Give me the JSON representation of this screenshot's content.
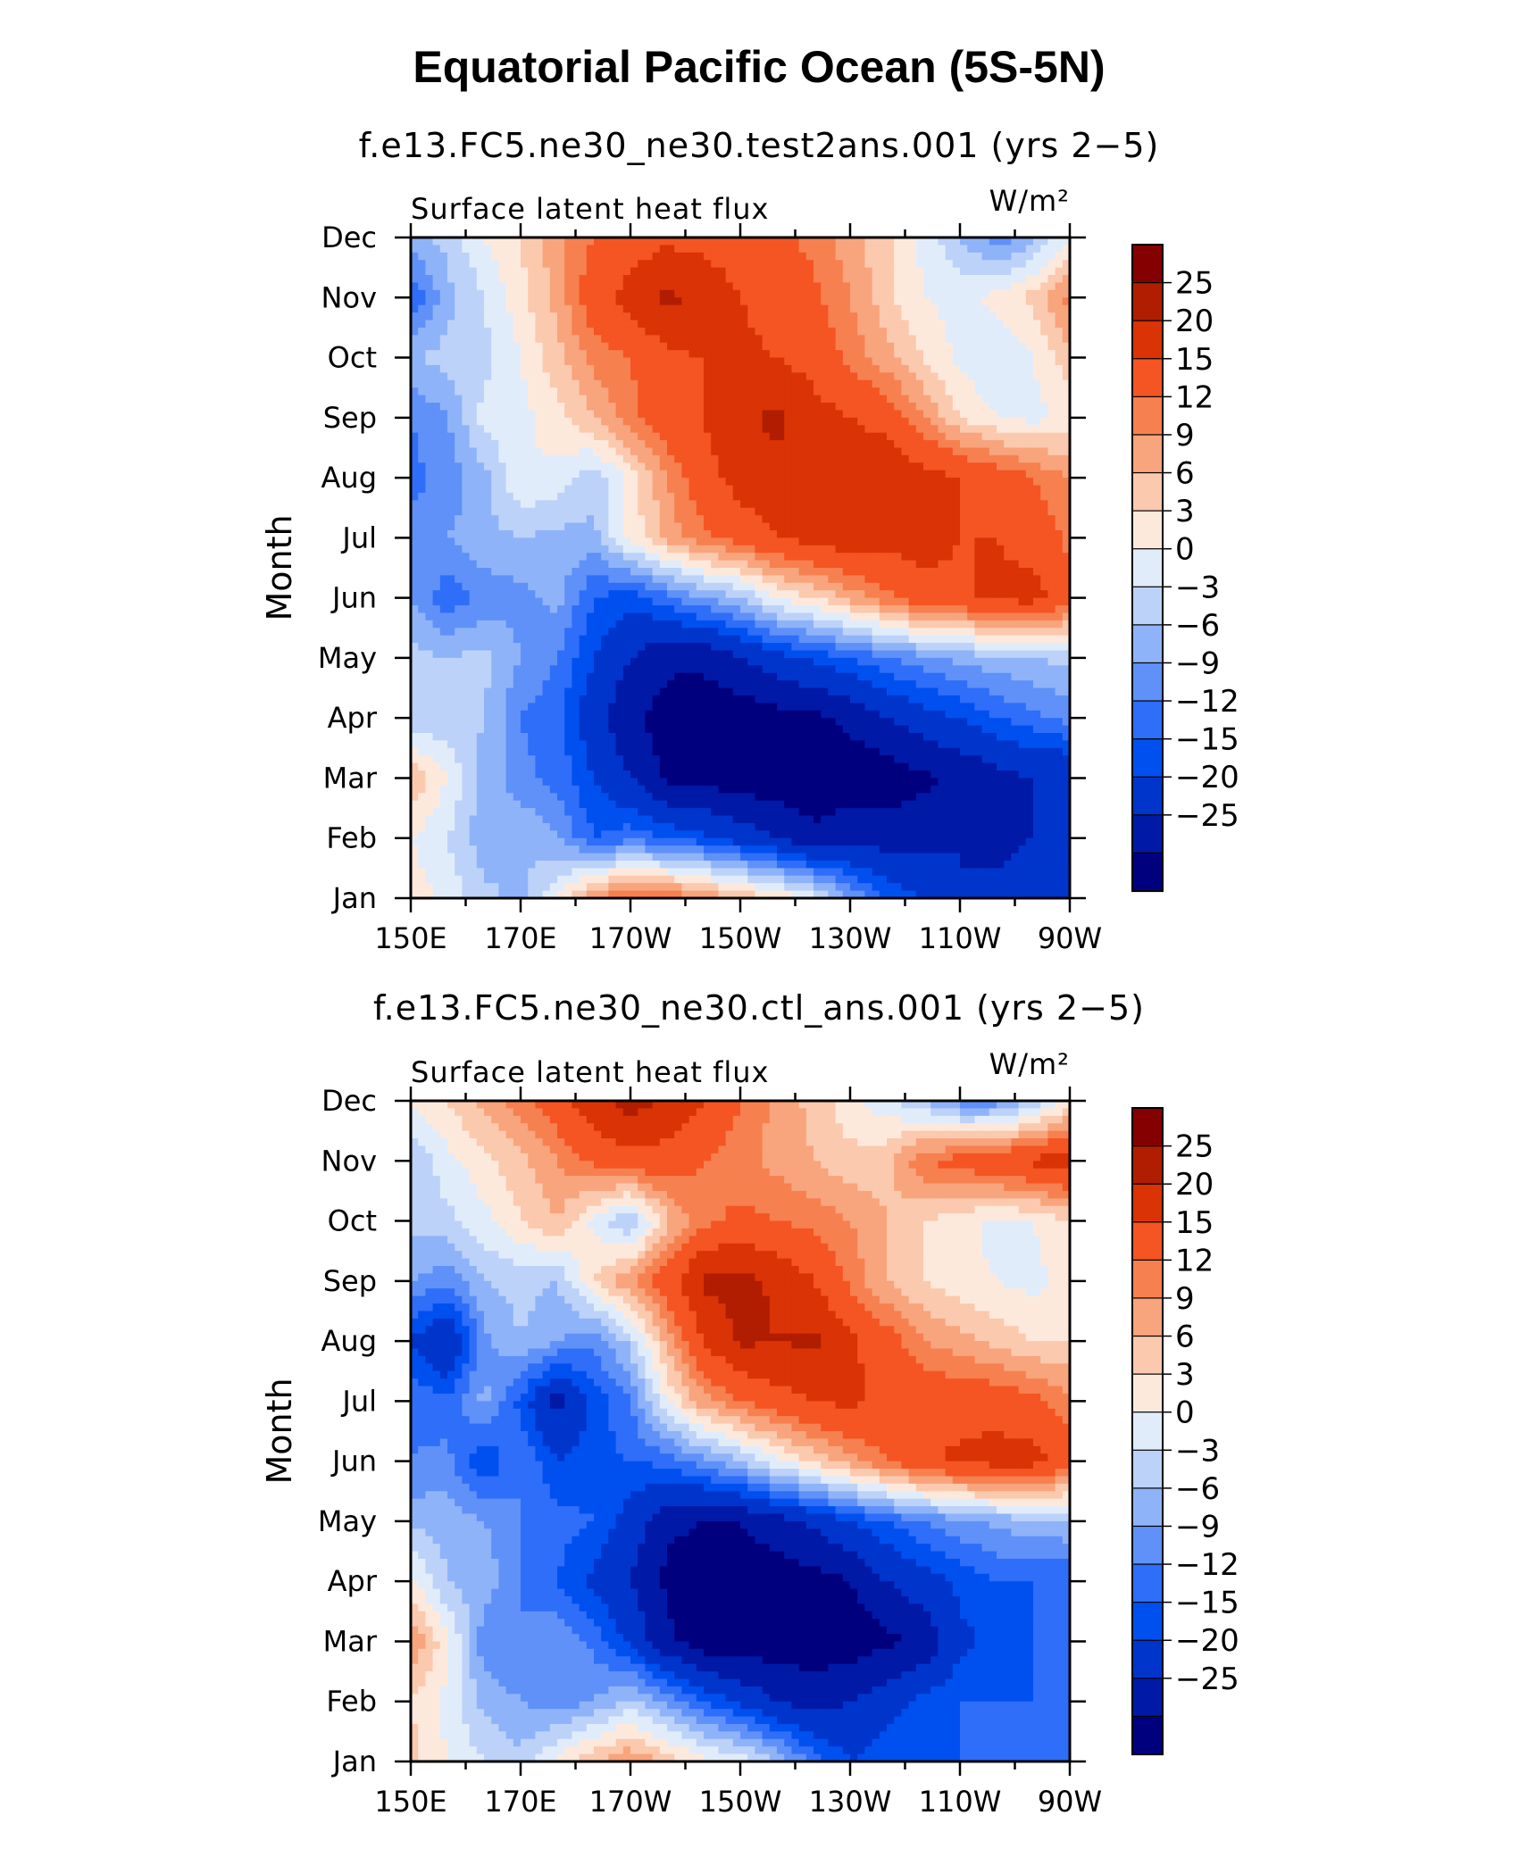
{
  "figure": {
    "title": "Equatorial Pacific Ocean (5S-5N)",
    "units": "W/m²"
  },
  "colorbar": {
    "levels": [
      -25,
      -20,
      -15,
      -12,
      -9,
      -6,
      -3,
      0,
      3,
      6,
      9,
      12,
      15,
      20,
      25
    ],
    "labels": [
      "25",
      "20",
      "15",
      "12",
      "9",
      "6",
      "3",
      "0",
      "−3",
      "−6",
      "−9",
      "−12",
      "−15",
      "−20",
      "−25"
    ],
    "colors": [
      "#00007f",
      "#0019a6",
      "#0035cc",
      "#0050f0",
      "#2e6ef8",
      "#5f91f8",
      "#8fb3f8",
      "#bcd2f8",
      "#e1ecfb",
      "#fde9dc",
      "#fbc9ae",
      "#f8a47c",
      "#f6804f",
      "#f45522",
      "#d93306",
      "#b11d00",
      "#850000"
    ]
  },
  "chart_data": [
    {
      "type": "heatmap",
      "title": "f.e13.FC5.ne30_ne30.test2ans.001 (yrs 2−5)",
      "variable": "Surface latent heat flux",
      "units": "W/m²",
      "xlabel": "",
      "ylabel": "Month",
      "x_ticks": [
        "150E",
        "170E",
        "170W",
        "150W",
        "130W",
        "110W",
        "90W"
      ],
      "x_values": [
        150,
        170,
        190,
        210,
        230,
        250,
        270
      ],
      "xlim": [
        150,
        270
      ],
      "y_ticks": [
        "Jan",
        "Feb",
        "Mar",
        "Apr",
        "May",
        "Jun",
        "Jul",
        "Aug",
        "Sep",
        "Oct",
        "Nov",
        "Dec"
      ],
      "ylim": [
        1,
        12
      ],
      "z": [
        [
          5,
          2,
          -2,
          -4,
          3,
          12,
          16,
          15,
          12,
          9,
          6,
          2,
          -6,
          -12,
          -15,
          -20,
          -18,
          -16,
          -16
        ],
        [
          3,
          0,
          -5,
          -3,
          -6,
          -12,
          -10,
          -12,
          -14,
          -17,
          -20,
          -24,
          -22,
          -22,
          -22,
          -20,
          -22,
          -20,
          -20
        ],
        [
          9,
          3,
          -4,
          -8,
          -10,
          -15,
          -20,
          -26,
          -27,
          -28,
          -28,
          -28,
          -28,
          -28,
          -26,
          -24,
          -22,
          -20,
          -20
        ],
        [
          -3,
          -2,
          -3,
          -9,
          -11,
          -18,
          -24,
          -27,
          -28,
          -28,
          -27,
          -26,
          -24,
          -20,
          -17,
          -15,
          -12,
          -10,
          -8
        ],
        [
          -2,
          -3,
          -2,
          -6,
          -9,
          -15,
          -20,
          -24,
          -24,
          -20,
          -17,
          -14,
          -12,
          -9,
          -7,
          -5,
          -4,
          -3,
          -2
        ],
        [
          -6,
          -11,
          -8,
          -7,
          -5,
          -12,
          -14,
          -10,
          -6,
          -3,
          3,
          6,
          10,
          14,
          18,
          19,
          21,
          22,
          17
        ],
        [
          -8,
          -6,
          -4,
          -3,
          -4,
          -4,
          4,
          10,
          14,
          17,
          20,
          22,
          23,
          22,
          22,
          20,
          20,
          18,
          14
        ],
        [
          -10,
          -8,
          -4,
          3,
          2,
          -2,
          4,
          12,
          18,
          22,
          24,
          24,
          24,
          24,
          22,
          20,
          18,
          15,
          12
        ],
        [
          -9,
          -6,
          1,
          2,
          5,
          9,
          14,
          18,
          20,
          24,
          26,
          22,
          20,
          18,
          12,
          6,
          3,
          2,
          4
        ],
        [
          -3,
          -2,
          -1,
          3,
          8,
          13,
          15,
          19,
          20,
          21,
          20,
          18,
          14,
          10,
          6,
          2,
          0,
          3,
          8
        ],
        [
          -12,
          -4,
          0,
          5,
          10,
          18,
          22,
          26,
          24,
          20,
          18,
          16,
          12,
          7,
          3,
          2,
          4,
          7,
          13
        ],
        [
          -4,
          -2,
          3,
          6,
          11,
          15,
          17,
          19,
          18,
          17,
          16,
          14,
          10,
          7,
          2,
          -3,
          -8,
          -4,
          3
        ]
      ]
    },
    {
      "type": "heatmap",
      "title": "f.e13.FC5.ne30_ne30.ctl_ans.001 (yrs 2−5)",
      "variable": "Surface latent heat flux",
      "units": "W/m²",
      "xlabel": "",
      "ylabel": "Month",
      "x_ticks": [
        "150E",
        "170E",
        "170W",
        "150W",
        "130W",
        "110W",
        "90W"
      ],
      "x_values": [
        150,
        170,
        190,
        210,
        230,
        250,
        270
      ],
      "xlim": [
        150,
        270
      ],
      "y_ticks": [
        "Jan",
        "Feb",
        "Mar",
        "Apr",
        "May",
        "Jun",
        "Jul",
        "Aug",
        "Sep",
        "Oct",
        "Nov",
        "Dec"
      ],
      "ylim": [
        1,
        12
      ],
      "z": [
        [
          7,
          3,
          0,
          -2,
          4,
          9,
          12,
          8,
          4,
          2,
          -3,
          -10,
          -15,
          -12,
          -12,
          -12,
          -12,
          -12,
          -12
        ],
        [
          6,
          2,
          -4,
          -6,
          -8,
          -6,
          -2,
          -7,
          -12,
          -16,
          -20,
          -22,
          -20,
          -17,
          -14,
          -12,
          -12,
          -12,
          -12
        ],
        [
          12,
          4,
          -8,
          -9,
          -6,
          -10,
          -16,
          -24,
          -28,
          -28,
          -28,
          -28,
          -28,
          -26,
          -24,
          -16,
          -14,
          -12,
          -12
        ],
        [
          4,
          -3,
          -4,
          -9,
          -12,
          -16,
          -20,
          -26,
          -28,
          -28,
          -28,
          -27,
          -25,
          -20,
          -17,
          -14,
          -12,
          -12,
          -12
        ],
        [
          -4,
          -4,
          -6,
          -9,
          -11,
          -12,
          -17,
          -24,
          -25,
          -25,
          -22,
          -19,
          -15,
          -12,
          -9,
          -7,
          -5,
          -4,
          -3
        ],
        [
          -9,
          -8,
          -15,
          -9,
          -15,
          -13,
          -12,
          -11,
          -7,
          -3,
          2,
          7,
          11,
          15,
          19,
          21,
          22,
          22,
          17
        ],
        [
          -10,
          -11,
          -5,
          -13,
          -22,
          -14,
          -9,
          3,
          11,
          15,
          18,
          20,
          21,
          19,
          19,
          18,
          18,
          16,
          13
        ],
        [
          -15,
          -21,
          -7,
          -3,
          -6,
          -8,
          -2,
          10,
          20,
          26,
          25,
          26,
          21,
          17,
          12,
          10,
          8,
          6,
          6
        ],
        [
          -6,
          -8,
          -3,
          -2,
          -3,
          6,
          12,
          18,
          26,
          27,
          24,
          20,
          14,
          9,
          6,
          4,
          3,
          2,
          4
        ],
        [
          -2,
          -1,
          2,
          6,
          9,
          2,
          -4,
          8,
          14,
          16,
          15,
          14,
          12,
          9,
          6,
          4,
          2,
          3,
          6
        ],
        [
          -3,
          2,
          5,
          8,
          12,
          16,
          18,
          18,
          15,
          13,
          11,
          9,
          7,
          8,
          15,
          17,
          19,
          21,
          23
        ],
        [
          4,
          6,
          10,
          14,
          18,
          24,
          27,
          24,
          20,
          15,
          11,
          8,
          4,
          1,
          -3,
          -8,
          -8,
          -3,
          4
        ]
      ]
    }
  ]
}
